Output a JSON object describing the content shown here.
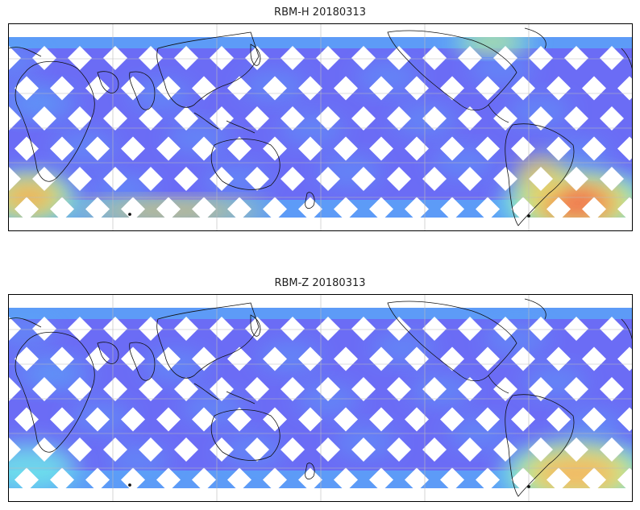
{
  "panels": [
    {
      "title": "RBM-H 20180313",
      "colors": {
        "low": "#6b6cf5",
        "mid_low": "#5aa8f8",
        "mid": "#6fe8ea",
        "mid_high": "#e8ee6a",
        "high": "#f8a050",
        "max": "#f05a50"
      },
      "hotspots": [
        {
          "region": "south-atlantic",
          "level": "max"
        },
        {
          "region": "southern-ocean-west",
          "level": "high"
        },
        {
          "region": "north-atlantic-edge",
          "level": "mid_high"
        }
      ]
    },
    {
      "title": "RBM-Z 20180313",
      "colors": {
        "low": "#6b6cf5",
        "mid_low": "#5aa8f8",
        "mid": "#6fe8ea",
        "mid_high": "#e8ee6a",
        "high": "#f8b060",
        "max": "#f08a50"
      },
      "hotspots": [
        {
          "region": "south-atlantic",
          "level": "high"
        },
        {
          "region": "southern-ocean-west",
          "level": "mid"
        }
      ]
    }
  ]
}
